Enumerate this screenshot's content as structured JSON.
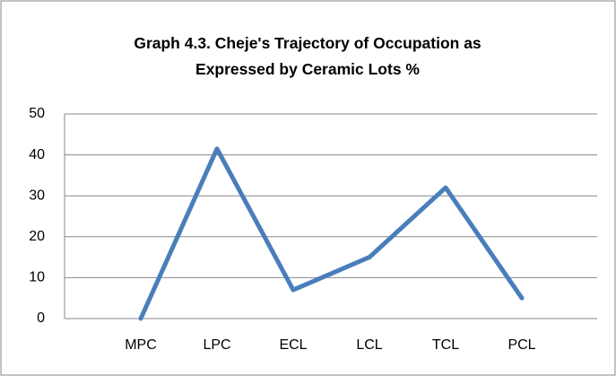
{
  "chart_data": {
    "type": "line",
    "title": "Graph 4.3. Cheje's Trajectory of Occupation as Expressed by Ceramic Lots %",
    "categories": [
      "MPC",
      "LPC",
      "ECL",
      "LCL",
      "TCL",
      "PCL"
    ],
    "values": [
      0,
      41.5,
      7,
      15,
      32,
      5
    ],
    "color": "#4a7ebb",
    "ylim": [
      0,
      50
    ],
    "yticks": [
      0,
      10,
      20,
      30,
      40,
      50
    ],
    "grid": true
  }
}
